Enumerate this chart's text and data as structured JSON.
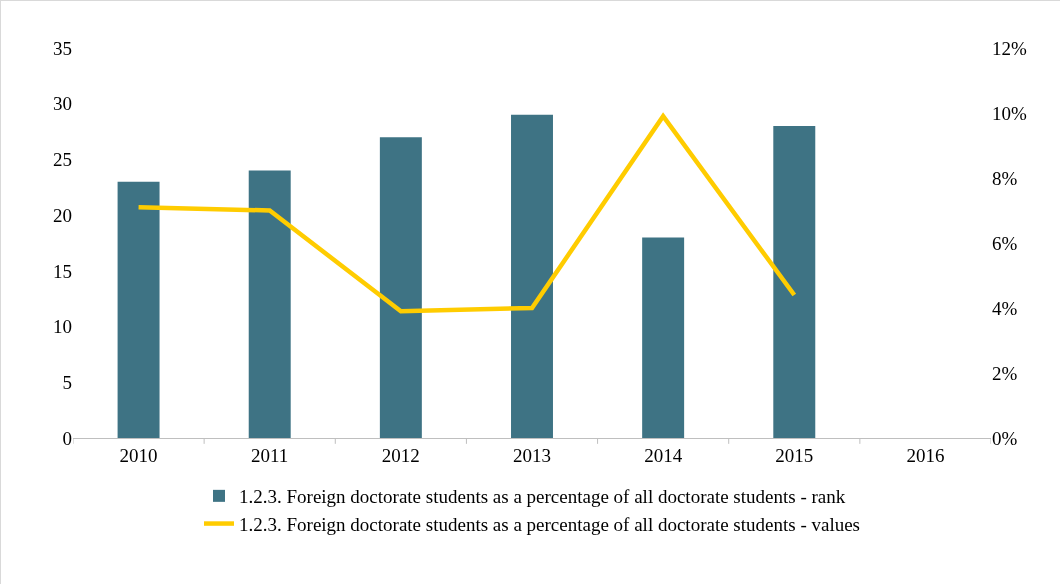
{
  "chart_data": {
    "type": "bar",
    "categories": [
      "2010",
      "2011",
      "2012",
      "2013",
      "2014",
      "2015",
      "2016"
    ],
    "series": [
      {
        "name": "1.2.3. Foreign doctorate students as a percentage of all doctorate students - rank",
        "color": "#3e7384",
        "values": [
          23,
          24,
          27,
          29,
          18,
          28,
          null
        ]
      },
      {
        "name": "1.2.3. Foreign doctorate students as a percentage of all doctorate students - values",
        "type": "line",
        "axis": "y2",
        "color": "#ffcc00",
        "values": [
          7.1,
          7.0,
          3.9,
          4.0,
          9.9,
          4.4,
          null
        ]
      }
    ],
    "ylim": [
      0,
      35
    ],
    "yticks": [
      0,
      5,
      10,
      15,
      20,
      25,
      30,
      35
    ],
    "y2lim": [
      0,
      12
    ],
    "y2ticks": [
      {
        "value": 0,
        "label": "0%"
      },
      {
        "value": 2,
        "label": "2%"
      },
      {
        "value": 4,
        "label": "4%"
      },
      {
        "value": 6,
        "label": "6%"
      },
      {
        "value": 8,
        "label": "8%"
      },
      {
        "value": 10,
        "label": "10%"
      },
      {
        "value": 12,
        "label": "12%"
      }
    ],
    "grid": false,
    "legend": "bottom",
    "marker": "none",
    "line_style": "solid"
  }
}
